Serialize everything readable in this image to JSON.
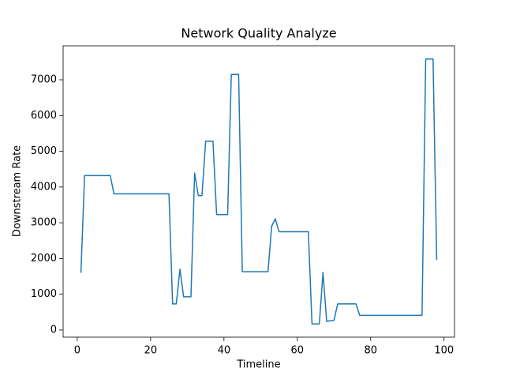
{
  "chart_data": {
    "type": "line",
    "title": "Network Quality Analyze",
    "x_label": "Timeline",
    "y_label": "Downstream Rate",
    "x": [
      1,
      2,
      3,
      4,
      5,
      6,
      7,
      8,
      9,
      10,
      11,
      12,
      13,
      14,
      15,
      16,
      17,
      18,
      19,
      20,
      21,
      22,
      23,
      24,
      25,
      26,
      27,
      28,
      29,
      30,
      31,
      32,
      33,
      34,
      35,
      36,
      37,
      38,
      39,
      40,
      41,
      42,
      43,
      44,
      45,
      46,
      47,
      48,
      49,
      50,
      51,
      52,
      53,
      54,
      55,
      56,
      57,
      58,
      59,
      60,
      61,
      62,
      63,
      64,
      65,
      66,
      67,
      68,
      69,
      70,
      71,
      72,
      73,
      74,
      75,
      76,
      77,
      78,
      79,
      80,
      81,
      82,
      83,
      84,
      85,
      86,
      87,
      88,
      89,
      90,
      91,
      92,
      93,
      94,
      95,
      96,
      97,
      98
    ],
    "values": [
      1600,
      4320,
      4320,
      4320,
      4320,
      4320,
      4320,
      4320,
      4320,
      3810,
      3810,
      3810,
      3810,
      3810,
      3810,
      3810,
      3810,
      3810,
      3810,
      3810,
      3810,
      3810,
      3810,
      3810,
      3810,
      730,
      730,
      1700,
      930,
      930,
      930,
      4390,
      3760,
      3760,
      5280,
      5280,
      5280,
      3230,
      3230,
      3230,
      3230,
      7150,
      7150,
      7150,
      1630,
      1630,
      1630,
      1630,
      1630,
      1630,
      1630,
      1630,
      2900,
      3110,
      2750,
      2750,
      2750,
      2750,
      2750,
      2750,
      2750,
      2750,
      2750,
      170,
      170,
      170,
      1610,
      240,
      260,
      270,
      730,
      730,
      730,
      730,
      730,
      730,
      410,
      410,
      410,
      410,
      410,
      410,
      410,
      410,
      410,
      410,
      410,
      410,
      410,
      410,
      410,
      410,
      410,
      410,
      7580,
      7580,
      7580,
      1960
    ],
    "color": "#1f77b4",
    "xlim": [
      -3.85,
      102.85
    ],
    "xticks": [
      0,
      20,
      40,
      60,
      80,
      100
    ],
    "ylim": [
      -200,
      7950
    ],
    "yticks": [
      0,
      1000,
      2000,
      3000,
      4000,
      5000,
      6000,
      7000
    ],
    "grid": false
  }
}
